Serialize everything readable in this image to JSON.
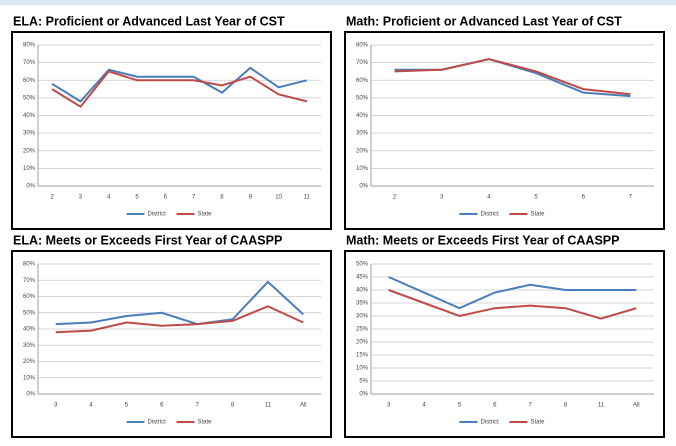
{
  "chart_data": [
    {
      "type": "line",
      "title": "ELA:  Proficient or Advanced Last Year of CST",
      "categories": [
        "2",
        "3",
        "4",
        "5",
        "6",
        "7",
        "8",
        "9",
        "10",
        "11"
      ],
      "series": [
        {
          "name": "District",
          "color": "#4a7ebb",
          "values": [
            58,
            48,
            66,
            62,
            62,
            62,
            53,
            67,
            56,
            60
          ]
        },
        {
          "name": "State",
          "color": "#be4b48",
          "values": [
            55,
            45,
            65,
            60,
            60,
            60,
            57,
            62,
            52,
            48
          ]
        }
      ],
      "ylim": [
        0,
        80
      ],
      "yticks": [
        {
          "value": 0,
          "label": "0%"
        },
        {
          "value": 10,
          "label": "10%"
        },
        {
          "value": 20,
          "label": "20%"
        },
        {
          "value": 30,
          "label": "30%"
        },
        {
          "value": 40,
          "label": "40%"
        },
        {
          "value": 50,
          "label": "50%"
        },
        {
          "value": 60,
          "label": "60%"
        },
        {
          "value": 70,
          "label": "70%"
        },
        {
          "value": 80,
          "label": "80%"
        }
      ],
      "grid": true,
      "legend": "bottom"
    },
    {
      "type": "line",
      "title": "Math:  Proficient or Advanced Last Year of CST",
      "categories": [
        "2",
        "3",
        "4",
        "5",
        "6",
        "7"
      ],
      "series": [
        {
          "name": "District",
          "color": "#4a7ebb",
          "values": [
            66,
            66,
            72,
            64,
            53,
            51
          ]
        },
        {
          "name": "State",
          "color": "#be4b48",
          "values": [
            65,
            66,
            72,
            65,
            55,
            52
          ]
        }
      ],
      "ylim": [
        0,
        80
      ],
      "yticks": [
        {
          "value": 0,
          "label": "0%"
        },
        {
          "value": 10,
          "label": "10%"
        },
        {
          "value": 20,
          "label": "20%"
        },
        {
          "value": 30,
          "label": "30%"
        },
        {
          "value": 40,
          "label": "40%"
        },
        {
          "value": 50,
          "label": "50%"
        },
        {
          "value": 60,
          "label": "60%"
        },
        {
          "value": 70,
          "label": "70%"
        },
        {
          "value": 80,
          "label": "80%"
        }
      ],
      "grid": true,
      "legend": "bottom"
    },
    {
      "type": "line",
      "title": "ELA:  Meets or Exceeds First Year of CAASPP",
      "categories": [
        "3",
        "4",
        "5",
        "6",
        "7",
        "8",
        "11",
        "All"
      ],
      "series": [
        {
          "name": "District",
          "color": "#4a7ebb",
          "values": [
            43,
            44,
            48,
            50,
            43,
            46,
            69,
            49
          ]
        },
        {
          "name": "State",
          "color": "#be4b48",
          "values": [
            38,
            39,
            44,
            42,
            43,
            45,
            54,
            44
          ]
        }
      ],
      "ylim": [
        0,
        80
      ],
      "yticks": [
        {
          "value": 0,
          "label": "0%"
        },
        {
          "value": 10,
          "label": "10%"
        },
        {
          "value": 20,
          "label": "20%"
        },
        {
          "value": 30,
          "label": "30%"
        },
        {
          "value": 40,
          "label": "40%"
        },
        {
          "value": 50,
          "label": "50%"
        },
        {
          "value": 60,
          "label": "60%"
        },
        {
          "value": 70,
          "label": "70%"
        },
        {
          "value": 80,
          "label": "80%"
        }
      ],
      "grid": true,
      "legend": "bottom"
    },
    {
      "type": "line",
      "title": "Math:  Meets or Exceeds First Year of CAASPP",
      "categories": [
        "3",
        "4",
        "5",
        "6",
        "7",
        "8",
        "11",
        "All"
      ],
      "series": [
        {
          "name": "District",
          "color": "#4a7ebb",
          "values": [
            45,
            39,
            33,
            39,
            42,
            40,
            40,
            40
          ]
        },
        {
          "name": "State",
          "color": "#be4b48",
          "values": [
            40,
            35,
            30,
            33,
            34,
            33,
            29,
            33
          ]
        }
      ],
      "ylim": [
        0,
        50
      ],
      "yticks": [
        {
          "value": 0,
          "label": "0%"
        },
        {
          "value": 5,
          "label": "5%"
        },
        {
          "value": 10,
          "label": "10%"
        },
        {
          "value": 15,
          "label": "15%"
        },
        {
          "value": 20,
          "label": "20%"
        },
        {
          "value": 25,
          "label": "25%"
        },
        {
          "value": 30,
          "label": "30%"
        },
        {
          "value": 35,
          "label": "35%"
        },
        {
          "value": 40,
          "label": "40%"
        },
        {
          "value": 45,
          "label": "45%"
        },
        {
          "value": 50,
          "label": "50%"
        }
      ],
      "grid": true,
      "legend": "bottom"
    }
  ]
}
